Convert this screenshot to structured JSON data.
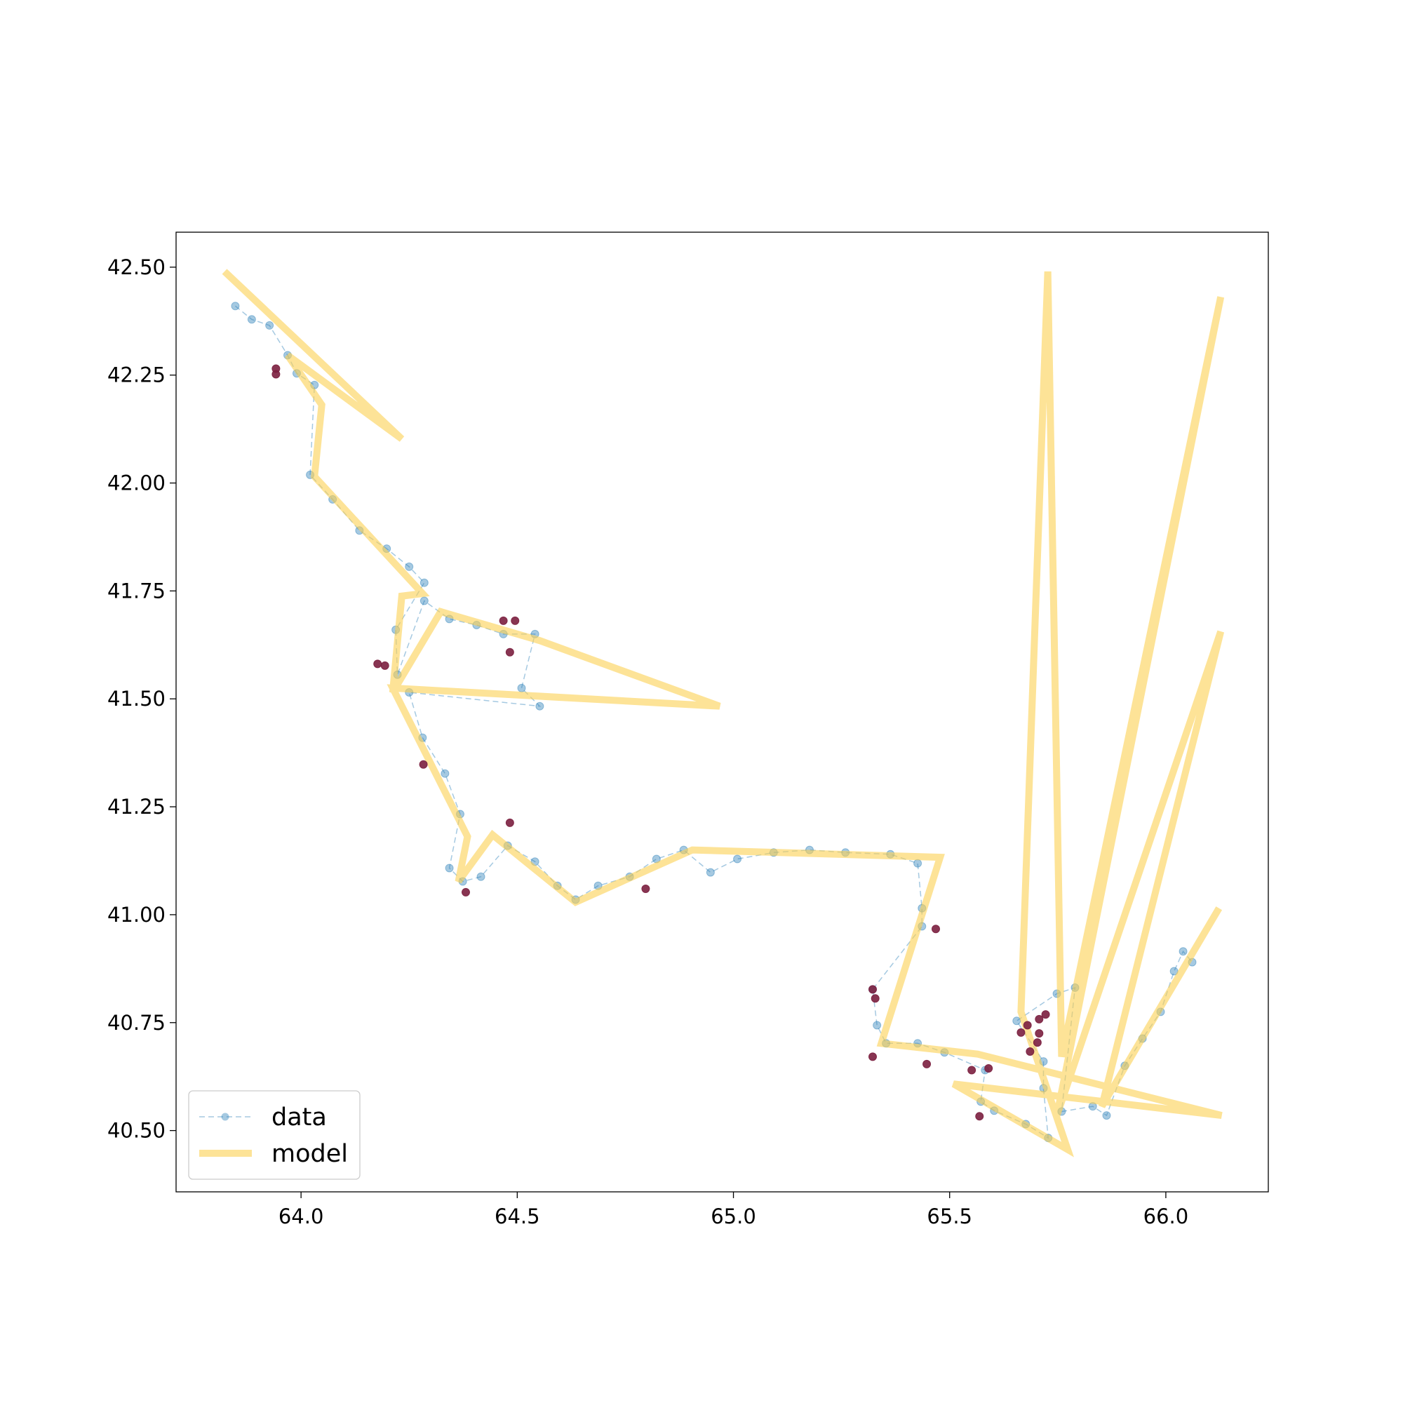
{
  "chart_data": {
    "type": "line",
    "xlim": [
      63.711,
      66.237
    ],
    "ylim": [
      40.358,
      42.581
    ],
    "xticks": [
      {
        "value": 64,
        "label": "64.0"
      },
      64.5,
      {
        "value": 65,
        "label": "65.0"
      },
      65.5,
      {
        "value": 66,
        "label": "66.0"
      }
    ],
    "yticks": [
      {
        "value": 40.5,
        "label": "40.50"
      },
      40.75,
      {
        "value": 41,
        "label": "41.00"
      },
      41.25,
      {
        "value": 41.5,
        "label": "41.50"
      },
      41.75,
      {
        "value": 42,
        "label": "42.00"
      },
      42.25,
      {
        "value": 42.5,
        "label": "42.50"
      }
    ],
    "legend": "lower left",
    "series": [
      {
        "name": "data",
        "color": "#1f77b4",
        "linestyle": "dashed",
        "marker": true,
        "linewidth": 1.5,
        "opacity": 0.4,
        "x": [
          63.848,
          63.886,
          63.927,
          63.969,
          63.99,
          64.031,
          64.021,
          64.073,
          64.135,
          64.198,
          64.25,
          64.285,
          64.219,
          64.223,
          64.285,
          64.343,
          64.406,
          64.468,
          64.541,
          64.51,
          64.552,
          64.25,
          64.281,
          64.333,
          64.368,
          64.343,
          64.374,
          64.416,
          64.478,
          64.541,
          64.593,
          64.635,
          64.687,
          64.76,
          64.822,
          64.885,
          64.947,
          65.009,
          65.093,
          65.176,
          65.259,
          65.363,
          65.426,
          65.436,
          65.436,
          65.322,
          65.332,
          65.353,
          65.426,
          65.488,
          65.582,
          65.572,
          65.603,
          65.676,
          65.728,
          65.717,
          65.717,
          65.655,
          65.748,
          65.79,
          65.759,
          65.831,
          65.863,
          65.905,
          65.946,
          65.988,
          66.019,
          66.04,
          66.061
        ],
        "values": [
          42.41,
          42.379,
          42.365,
          42.296,
          42.254,
          42.227,
          42.019,
          41.962,
          41.89,
          41.848,
          41.806,
          41.769,
          41.66,
          41.556,
          41.727,
          41.685,
          41.671,
          41.65,
          41.65,
          41.525,
          41.483,
          41.515,
          41.41,
          41.327,
          41.233,
          41.108,
          41.077,
          41.088,
          41.16,
          41.123,
          41.067,
          41.035,
          41.067,
          41.088,
          41.129,
          41.15,
          41.098,
          41.129,
          41.144,
          41.15,
          41.144,
          41.14,
          41.119,
          41.015,
          40.973,
          40.827,
          40.744,
          40.702,
          40.702,
          40.681,
          40.64,
          40.567,
          40.546,
          40.515,
          40.483,
          40.598,
          40.66,
          40.754,
          40.817,
          40.831,
          40.544,
          40.556,
          40.535,
          40.65,
          40.713,
          40.775,
          40.869,
          40.915,
          40.89
        ]
      },
      {
        "name": "model",
        "color": "#fcd152",
        "linestyle": "solid",
        "marker": false,
        "linewidth": 10,
        "opacity": 0.6,
        "x": [
          63.823,
          64.233,
          63.969,
          64.048,
          64.031,
          64.281,
          64.233,
          64.212,
          64.323,
          64.552,
          64.968,
          64.212,
          64.385,
          64.364,
          64.443,
          64.635,
          64.905,
          65.478,
          65.342,
          65.565,
          66.129,
          65.509,
          65.773,
          65.665,
          65.727,
          65.759,
          66.127,
          65.748,
          66.127,
          65.852,
          66.123
        ],
        "values": [
          42.49,
          42.102,
          42.296,
          42.181,
          42.015,
          41.744,
          41.738,
          41.515,
          41.702,
          41.635,
          41.483,
          41.525,
          41.181,
          41.077,
          41.185,
          41.029,
          41.15,
          41.133,
          40.702,
          40.677,
          40.535,
          40.608,
          40.456,
          40.775,
          42.49,
          40.671,
          42.431,
          40.535,
          41.656,
          40.556,
          41.015
        ]
      },
      {
        "color": "#7b1f3f",
        "linestyle": "none",
        "marker": true,
        "linewidth": 0,
        "opacity": 0.9,
        "x": [
          63.942,
          63.942,
          64.177,
          64.194,
          64.283,
          64.468,
          64.495,
          64.483,
          64.483,
          64.381,
          64.797,
          65.468,
          65.322,
          65.328,
          65.322,
          65.447,
          65.551,
          65.59,
          65.569,
          65.665,
          65.68,
          65.707,
          65.722,
          65.686,
          65.703,
          65.707
        ],
        "values": [
          42.265,
          42.252,
          41.581,
          41.577,
          41.348,
          41.681,
          41.681,
          41.608,
          41.213,
          41.052,
          41.06,
          40.967,
          40.827,
          40.806,
          40.671,
          40.654,
          40.64,
          40.644,
          40.533,
          40.727,
          40.744,
          40.758,
          40.769,
          40.683,
          40.704,
          40.725
        ]
      }
    ]
  }
}
